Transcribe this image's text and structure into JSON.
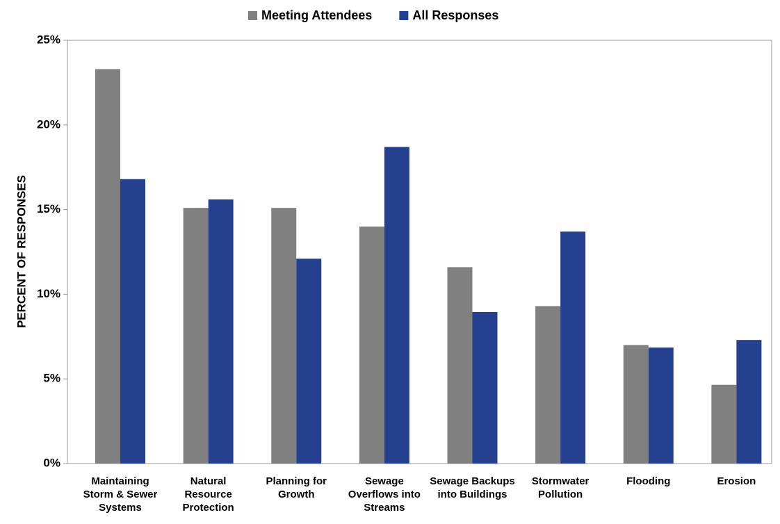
{
  "chart_data": {
    "type": "bar",
    "y_label": "PERCENT OF RESPONSES",
    "categories": [
      "Maintaining Storm & Sewer Systems",
      "Natural Resource Protection",
      "Planning for Growth",
      "Sewage Overflows into Streams",
      "Sewage Backups into Buildings",
      "Stormwater Pollution",
      "Flooding",
      "Erosion"
    ],
    "series": [
      {
        "name": "Meeting Attendees",
        "color": "#808080",
        "values": [
          23.3,
          15.1,
          15.1,
          14.0,
          11.6,
          9.3,
          7.0,
          4.65
        ]
      },
      {
        "name": "All Responses",
        "color": "#24408e",
        "values": [
          16.8,
          15.6,
          12.1,
          18.7,
          8.95,
          13.7,
          6.85,
          7.3
        ]
      }
    ],
    "ylim": [
      0,
      25
    ],
    "yticks": [
      {
        "value": 0,
        "label": "0%"
      },
      {
        "value": 5,
        "label": "5%"
      },
      {
        "value": 10,
        "label": "10%"
      },
      {
        "value": 15,
        "label": "15%"
      },
      {
        "value": 20,
        "label": "20%"
      },
      {
        "value": 25,
        "label": "25%"
      }
    ],
    "grid": false,
    "legend": "top"
  }
}
